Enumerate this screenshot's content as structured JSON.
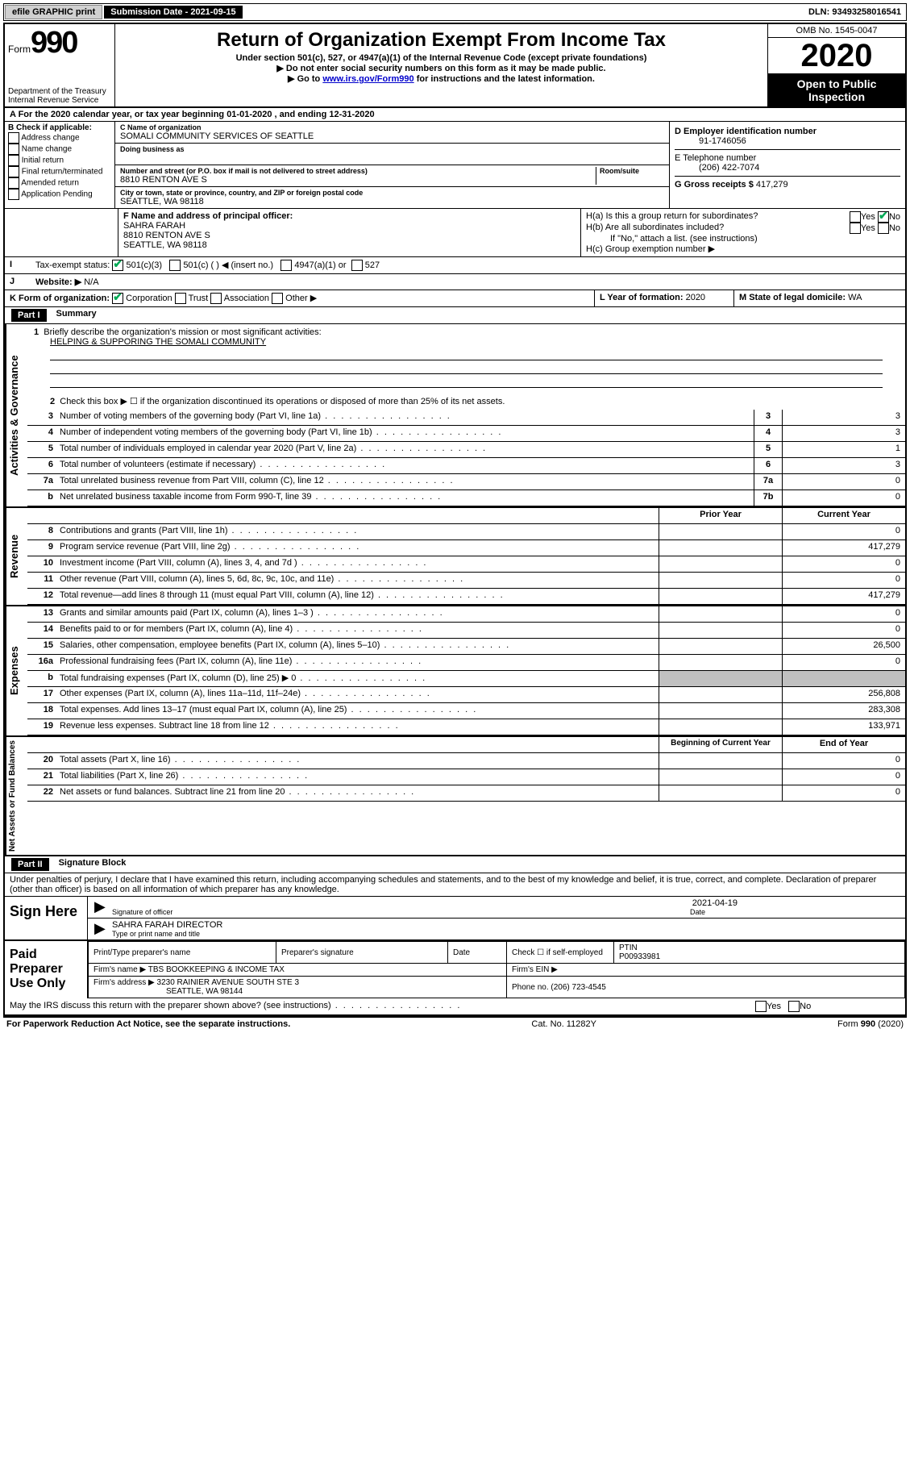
{
  "topbar": {
    "efile": "efile GRAPHIC print",
    "sub_label": "Submission Date",
    "sub_date": "2021-09-15",
    "dln_label": "DLN:",
    "dln": "93493258016541"
  },
  "header": {
    "form_prefix": "Form",
    "form_num": "990",
    "dept": "Department of the Treasury\nInternal Revenue Service",
    "title": "Return of Organization Exempt From Income Tax",
    "sub1": "Under section 501(c), 527, or 4947(a)(1) of the Internal Revenue Code (except private foundations)",
    "sub2": "▶ Do not enter social security numbers on this form as it may be made public.",
    "sub3_pre": "▶ Go to ",
    "sub3_link": "www.irs.gov/Form990",
    "sub3_post": " for instructions and the latest information.",
    "omb": "OMB No. 1545-0047",
    "year": "2020",
    "open": "Open to Public Inspection"
  },
  "row_a": "A   For the 2020 calendar year, or tax year beginning 01-01-2020   , and ending 12-31-2020",
  "col_b": {
    "label": "B Check if applicable:",
    "items": [
      "Address change",
      "Name change",
      "Initial return",
      "Final return/terminated",
      "Amended return",
      "Application Pending"
    ]
  },
  "col_c": {
    "name_lbl": "C Name of organization",
    "name": "SOMALI COMMUNITY SERVICES OF SEATTLE",
    "dba_lbl": "Doing business as",
    "addr_lbl": "Number and street (or P.O. box if mail is not delivered to street address)",
    "room_lbl": "Room/suite",
    "addr": "8810 RENTON AVE S",
    "city_lbl": "City or town, state or province, country, and ZIP or foreign postal code",
    "city": "SEATTLE, WA  98118"
  },
  "col_d": {
    "ein_lbl": "D Employer identification number",
    "ein": "91-1746056",
    "tel_lbl": "E Telephone number",
    "tel": "(206) 422-7074",
    "gross_lbl": "G Gross receipts $",
    "gross": "417,279"
  },
  "row_f": {
    "f_lbl": "F  Name and address of principal officer:",
    "f_name": "SAHRA FARAH",
    "f_addr1": "8810 RENTON AVE S",
    "f_addr2": "SEATTLE, WA  98118",
    "ha": "H(a)  Is this a group return for subordinates?",
    "hb": "H(b)  Are all subordinates included?",
    "hb_note": "If \"No,\" attach a list. (see instructions)",
    "hc": "H(c)  Group exemption number ▶",
    "yes": "Yes",
    "no": "No"
  },
  "row_i": {
    "lbl": "Tax-exempt status:",
    "o1": "501(c)(3)",
    "o2": "501(c) (   ) ◀ (insert no.)",
    "o3": "4947(a)(1) or",
    "o4": "527"
  },
  "row_j": {
    "lbl": "Website: ▶",
    "val": "N/A"
  },
  "row_k": {
    "lbl": "K Form of organization:",
    "o1": "Corporation",
    "o2": "Trust",
    "o3": "Association",
    "o4": "Other ▶",
    "l_lbl": "L Year of formation:",
    "l_val": "2020",
    "m_lbl": "M State of legal domicile:",
    "m_val": "WA"
  },
  "part1": {
    "hdr": "Part I",
    "title": "Summary",
    "labels": {
      "activities": "Activities & Governance",
      "revenue": "Revenue",
      "expenses": "Expenses",
      "netassets": "Net Assets or Fund Balances"
    },
    "q1": "Briefly describe the organization's mission or most significant activities:",
    "q1_val": "HELPING & SUPPORING THE SOMALI COMMUNITY",
    "q2": "Check this box ▶ ☐  if the organization discontinued its operations or disposed of more than 25% of its net assets.",
    "lines_gov": [
      {
        "n": "3",
        "d": "Number of voting members of the governing body (Part VI, line 1a)",
        "box": "3",
        "v": "3"
      },
      {
        "n": "4",
        "d": "Number of independent voting members of the governing body (Part VI, line 1b)",
        "box": "4",
        "v": "3"
      },
      {
        "n": "5",
        "d": "Total number of individuals employed in calendar year 2020 (Part V, line 2a)",
        "box": "5",
        "v": "1"
      },
      {
        "n": "6",
        "d": "Total number of volunteers (estimate if necessary)",
        "box": "6",
        "v": "3"
      },
      {
        "n": "7a",
        "d": "Total unrelated business revenue from Part VIII, column (C), line 12",
        "box": "7a",
        "v": "0"
      },
      {
        "n": "b",
        "d": "Net unrelated business taxable income from Form 990-T, line 39",
        "box": "7b",
        "v": "0"
      }
    ],
    "col_prior": "Prior Year",
    "col_current": "Current Year",
    "lines_rev": [
      {
        "n": "8",
        "d": "Contributions and grants (Part VIII, line 1h)",
        "p": "",
        "c": "0"
      },
      {
        "n": "9",
        "d": "Program service revenue (Part VIII, line 2g)",
        "p": "",
        "c": "417,279"
      },
      {
        "n": "10",
        "d": "Investment income (Part VIII, column (A), lines 3, 4, and 7d )",
        "p": "",
        "c": "0"
      },
      {
        "n": "11",
        "d": "Other revenue (Part VIII, column (A), lines 5, 6d, 8c, 9c, 10c, and 11e)",
        "p": "",
        "c": "0"
      },
      {
        "n": "12",
        "d": "Total revenue—add lines 8 through 11 (must equal Part VIII, column (A), line 12)",
        "p": "",
        "c": "417,279"
      }
    ],
    "lines_exp": [
      {
        "n": "13",
        "d": "Grants and similar amounts paid (Part IX, column (A), lines 1–3 )",
        "p": "",
        "c": "0"
      },
      {
        "n": "14",
        "d": "Benefits paid to or for members (Part IX, column (A), line 4)",
        "p": "",
        "c": "0"
      },
      {
        "n": "15",
        "d": "Salaries, other compensation, employee benefits (Part IX, column (A), lines 5–10)",
        "p": "",
        "c": "26,500"
      },
      {
        "n": "16a",
        "d": "Professional fundraising fees (Part IX, column (A), line 11e)",
        "p": "",
        "c": "0"
      },
      {
        "n": "b",
        "d": "Total fundraising expenses (Part IX, column (D), line 25) ▶ 0",
        "p": "shaded",
        "c": "shaded"
      },
      {
        "n": "17",
        "d": "Other expenses (Part IX, column (A), lines 11a–11d, 11f–24e)",
        "p": "",
        "c": "256,808"
      },
      {
        "n": "18",
        "d": "Total expenses. Add lines 13–17 (must equal Part IX, column (A), line 25)",
        "p": "",
        "c": "283,308"
      },
      {
        "n": "19",
        "d": "Revenue less expenses. Subtract line 18 from line 12",
        "p": "",
        "c": "133,971"
      }
    ],
    "col_begin": "Beginning of Current Year",
    "col_end": "End of Year",
    "lines_net": [
      {
        "n": "20",
        "d": "Total assets (Part X, line 16)",
        "p": "",
        "c": "0"
      },
      {
        "n": "21",
        "d": "Total liabilities (Part X, line 26)",
        "p": "",
        "c": "0"
      },
      {
        "n": "22",
        "d": "Net assets or fund balances. Subtract line 21 from line 20",
        "p": "",
        "c": "0"
      }
    ]
  },
  "part2": {
    "hdr": "Part II",
    "title": "Signature Block",
    "decl": "Under penalties of perjury, I declare that I have examined this return, including accompanying schedules and statements, and to the best of my knowledge and belief, it is true, correct, and complete. Declaration of preparer (other than officer) is based on all information of which preparer has any knowledge.",
    "sign_here": "Sign Here",
    "sig_officer": "Signature of officer",
    "date_lbl": "Date",
    "sig_date": "2021-04-19",
    "name_title": "SAHRA FARAH  DIRECTOR",
    "type_lbl": "Type or print name and title",
    "paid": "Paid Preparer Use Only",
    "prep_name_lbl": "Print/Type preparer's name",
    "prep_sig_lbl": "Preparer's signature",
    "check_lbl": "Check ☐ if self-employed",
    "ptin_lbl": "PTIN",
    "ptin": "P00933981",
    "firm_name_lbl": "Firm's name   ▶",
    "firm_name": "TBS BOOKKEEPING & INCOME TAX",
    "firm_ein_lbl": "Firm's EIN ▶",
    "firm_addr_lbl": "Firm's address ▶",
    "firm_addr1": "3230 RAINIER AVENUE SOUTH STE 3",
    "firm_addr2": "SEATTLE, WA  98144",
    "phone_lbl": "Phone no.",
    "phone": "(206) 723-4545",
    "discuss": "May the IRS discuss this return with the preparer shown above? (see instructions)"
  },
  "footer": {
    "left": "For Paperwork Reduction Act Notice, see the separate instructions.",
    "mid": "Cat. No. 11282Y",
    "right": "Form 990 (2020)"
  }
}
